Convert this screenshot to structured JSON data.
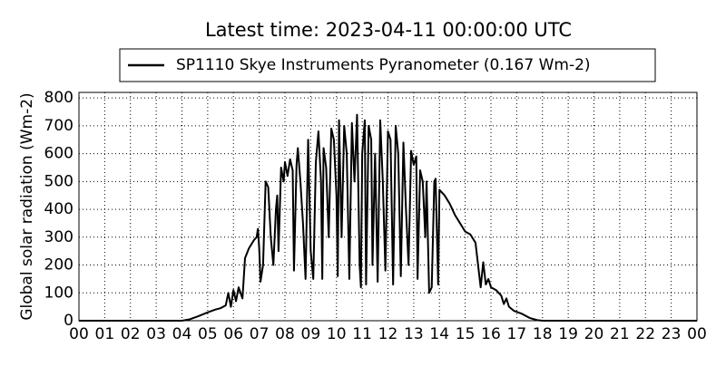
{
  "chart_data": {
    "type": "line",
    "title": "Latest time: 2023-04-11 00:00:00 UTC",
    "y_label": "Global solar radiation (Wm-2)",
    "series": [
      {
        "name": "SP1110 Skye Instruments Pyranometer (0.167 Wm-2)",
        "color": "#000000",
        "x": [
          0,
          4.0,
          4.3,
          4.6,
          5.0,
          5.3,
          5.5,
          5.7,
          5.8,
          5.9,
          6.0,
          6.1,
          6.2,
          6.35,
          6.45,
          6.6,
          6.8,
          6.9,
          6.95,
          7.0,
          7.05,
          7.15,
          7.25,
          7.35,
          7.45,
          7.55,
          7.65,
          7.7,
          7.75,
          7.85,
          7.95,
          8.0,
          8.1,
          8.2,
          8.3,
          8.35,
          8.45,
          8.5,
          8.6,
          8.7,
          8.8,
          8.9,
          9.0,
          9.1,
          9.2,
          9.3,
          9.4,
          9.45,
          9.5,
          9.6,
          9.7,
          9.8,
          9.9,
          10.0,
          10.05,
          10.1,
          10.2,
          10.3,
          10.4,
          10.5,
          10.6,
          10.7,
          10.8,
          10.9,
          10.95,
          11.0,
          11.1,
          11.15,
          11.25,
          11.35,
          11.4,
          11.5,
          11.6,
          11.7,
          11.8,
          11.9,
          12.0,
          12.1,
          12.2,
          12.3,
          12.4,
          12.5,
          12.6,
          12.7,
          12.8,
          12.9,
          13.0,
          13.1,
          13.15,
          13.25,
          13.35,
          13.45,
          13.5,
          13.6,
          13.7,
          13.8,
          13.85,
          13.95,
          14.0,
          14.2,
          14.4,
          14.6,
          14.8,
          15.0,
          15.2,
          15.4,
          15.5,
          15.6,
          15.7,
          15.8,
          15.9,
          16.0,
          16.2,
          16.4,
          16.5,
          16.6,
          16.7,
          16.9,
          17.2,
          17.5,
          17.8,
          18.0,
          24
        ],
        "values": [
          0,
          0,
          5,
          15,
          30,
          40,
          45,
          55,
          100,
          50,
          110,
          70,
          120,
          80,
          225,
          260,
          290,
          300,
          330,
          260,
          140,
          200,
          500,
          480,
          300,
          200,
          400,
          450,
          250,
          550,
          500,
          570,
          520,
          580,
          540,
          180,
          560,
          620,
          500,
          350,
          150,
          650,
          250,
          150,
          570,
          680,
          500,
          150,
          620,
          550,
          300,
          690,
          650,
          450,
          160,
          720,
          300,
          700,
          600,
          150,
          710,
          500,
          740,
          200,
          120,
          600,
          720,
          130,
          700,
          650,
          200,
          600,
          140,
          720,
          500,
          180,
          680,
          650,
          130,
          700,
          600,
          160,
          640,
          400,
          200,
          610,
          560,
          590,
          150,
          540,
          500,
          300,
          500,
          100,
          120,
          500,
          510,
          130,
          470,
          450,
          420,
          380,
          350,
          320,
          310,
          280,
          200,
          120,
          210,
          130,
          150,
          120,
          110,
          90,
          60,
          80,
          50,
          35,
          25,
          10,
          2,
          0,
          0
        ]
      }
    ],
    "xlim": [
      0,
      24
    ],
    "ylim": [
      0,
      820
    ],
    "xticks": [
      {
        "value": 0,
        "label": "00"
      },
      {
        "value": 1,
        "label": "01"
      },
      {
        "value": 2,
        "label": "02"
      },
      {
        "value": 3,
        "label": "03"
      },
      {
        "value": 4,
        "label": "04"
      },
      {
        "value": 5,
        "label": "05"
      },
      {
        "value": 6,
        "label": "06"
      },
      {
        "value": 7,
        "label": "07"
      },
      {
        "value": 8,
        "label": "08"
      },
      {
        "value": 9,
        "label": "09"
      },
      {
        "value": 10,
        "label": "10"
      },
      {
        "value": 11,
        "label": "11"
      },
      {
        "value": 12,
        "label": "12"
      },
      {
        "value": 13,
        "label": "13"
      },
      {
        "value": 14,
        "label": "14"
      },
      {
        "value": 15,
        "label": "15"
      },
      {
        "value": 16,
        "label": "16"
      },
      {
        "value": 17,
        "label": "17"
      },
      {
        "value": 18,
        "label": "18"
      },
      {
        "value": 19,
        "label": "19"
      },
      {
        "value": 20,
        "label": "20"
      },
      {
        "value": 21,
        "label": "21"
      },
      {
        "value": 22,
        "label": "22"
      },
      {
        "value": 23,
        "label": "23"
      },
      {
        "value": 24,
        "label": "00"
      }
    ],
    "yticks": [
      0,
      100,
      200,
      300,
      400,
      500,
      600,
      700,
      800
    ],
    "grid": true
  }
}
